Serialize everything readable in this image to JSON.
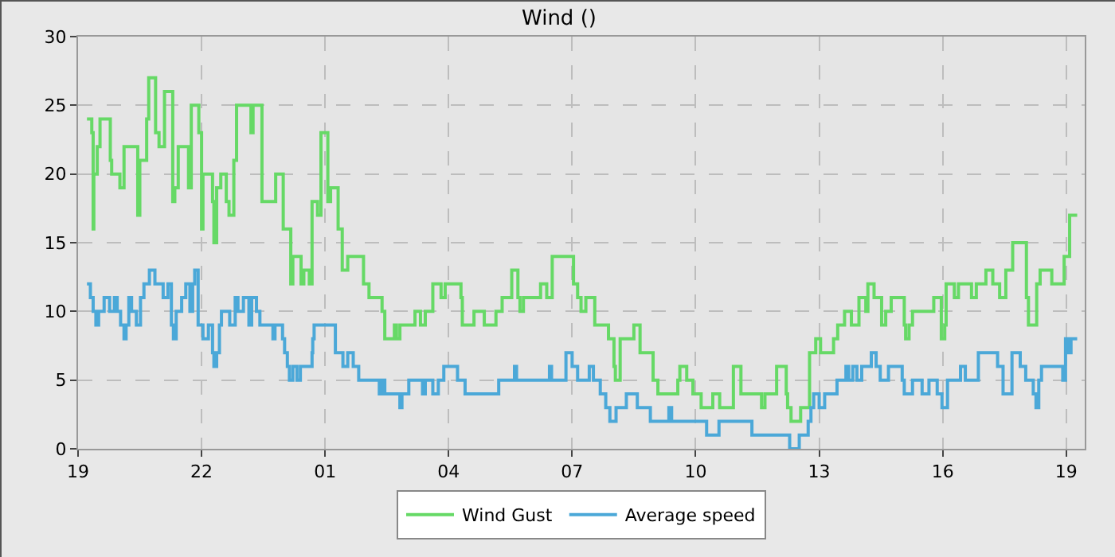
{
  "chart_data": {
    "type": "step",
    "title": "Wind ()",
    "xlim": [
      "--01-01T19:00",
      "--01-02T19:27"
    ],
    "xticks": [
      {
        "value": "--01-01T19:00",
        "label": "19"
      },
      {
        "value": "--01-01T22:00",
        "label": "22"
      },
      {
        "value": "--01-02T01:00",
        "label": "01"
      },
      {
        "value": "--01-02T04:00",
        "label": "04"
      },
      {
        "value": "--01-02T07:00",
        "label": "07"
      },
      {
        "value": "--01-02T10:00",
        "label": "10"
      },
      {
        "value": "--01-02T13:00",
        "label": "13"
      },
      {
        "value": "--01-02T16:00",
        "label": "16"
      },
      {
        "value": "--01-02T19:00",
        "label": "19"
      }
    ],
    "ylim": [
      0,
      30
    ],
    "yticks": [
      0,
      5,
      10,
      15,
      20,
      25,
      30
    ],
    "grid": true,
    "legend": "bottom",
    "marker": "none",
    "line_style": "solid",
    "series": [
      {
        "name": "Wind Gust",
        "color": "#66d966",
        "x": [
          "--01-01T19:13",
          "--01-01T19:20",
          "--01-01T19:22",
          "--01-01T19:23",
          "--01-01T19:28",
          "--01-01T19:32",
          "--01-01T19:47",
          "--01-01T19:49",
          "--01-01T20:01",
          "--01-01T20:07",
          "--01-01T20:27",
          "--01-01T20:30",
          "--01-01T20:40",
          "--01-01T20:43",
          "--01-01T20:53",
          "--01-01T20:58",
          "--01-01T21:06",
          "--01-01T21:18",
          "--01-01T21:21",
          "--01-01T21:26",
          "--01-01T21:41",
          "--01-01T21:45",
          "--01-01T21:56",
          "--01-01T22:00",
          "--01-01T22:02",
          "--01-01T22:16",
          "--01-01T22:18",
          "--01-01T22:22",
          "--01-01T22:28",
          "--01-01T22:36",
          "--01-01T22:40",
          "--01-01T22:47",
          "--01-01T22:51",
          "--01-01T23:12",
          "--01-01T23:15",
          "--01-01T23:28",
          "--01-01T23:48",
          "--01-01T23:59",
          "--01-02T00:10",
          "--01-02T00:13",
          "--01-02T00:25",
          "--01-02T00:29",
          "--01-02T00:37",
          "--01-02T00:41",
          "--01-02T00:49",
          "--01-02T00:54",
          "--01-02T01:04",
          "--01-02T01:08",
          "--01-02T01:19",
          "--01-02T01:25",
          "--01-02T01:33",
          "--01-02T01:56",
          "--01-02T02:04",
          "--01-02T02:23",
          "--01-02T02:27",
          "--01-02T02:41",
          "--01-02T02:44",
          "--01-02T02:49",
          "--01-02T03:11",
          "--01-02T03:19",
          "--01-02T03:26",
          "--01-02T03:37",
          "--01-02T03:49",
          "--01-02T03:55",
          "--01-02T04:18",
          "--01-02T04:20",
          "--01-02T04:37",
          "--01-02T04:52",
          "--01-02T05:09",
          "--01-02T05:18",
          "--01-02T05:32",
          "--01-02T05:41",
          "--01-02T05:44",
          "--01-02T05:49",
          "--01-02T06:14",
          "--01-02T06:23",
          "--01-02T06:31",
          "--01-02T07:02",
          "--01-02T07:08",
          "--01-02T07:13",
          "--01-02T07:20",
          "--01-02T07:33",
          "--01-02T07:53",
          "--01-02T08:01",
          "--01-02T08:03",
          "--01-02T08:10",
          "--01-02T08:30",
          "--01-02T08:39",
          "--01-02T08:58",
          "--01-02T09:05",
          "--01-02T09:34",
          "--01-02T09:37",
          "--01-02T09:47",
          "--01-02T09:56",
          "--01-02T10:08",
          "--01-02T10:25",
          "--01-02T10:35",
          "--01-02T10:55",
          "--01-02T11:06",
          "--01-02T11:36",
          "--01-02T11:41",
          "--01-02T11:58",
          "--01-02T12:12",
          "--01-02T12:14",
          "--01-02T12:19",
          "--01-02T12:33",
          "--01-02T12:46",
          "--01-02T12:55",
          "--01-02T13:02",
          "--01-02T13:21",
          "--01-02T13:27",
          "--01-02T13:37",
          "--01-02T13:47",
          "--01-02T13:58",
          "--01-02T14:08",
          "--01-02T14:11",
          "--01-02T14:20",
          "--01-02T14:31",
          "--01-02T14:37",
          "--01-02T14:45",
          "--01-02T15:04",
          "--01-02T15:06",
          "--01-02T15:11",
          "--01-02T15:16",
          "--01-02T15:47",
          "--01-02T15:58",
          "--01-02T16:03",
          "--01-02T16:05",
          "--01-02T16:17",
          "--01-02T16:23",
          "--01-02T16:42",
          "--01-02T16:49",
          "--01-02T17:03",
          "--01-02T17:13",
          "--01-02T17:23",
          "--01-02T17:32",
          "--01-02T17:42",
          "--01-02T18:02",
          "--01-02T18:05",
          "--01-02T18:17",
          "--01-02T18:22",
          "--01-02T18:39",
          "--01-02T18:57",
          "--01-02T19:05",
          "--01-02T19:16"
        ],
        "values": [
          24,
          23,
          16,
          20,
          22,
          24,
          21,
          20,
          19,
          22,
          17,
          21,
          24,
          27,
          23,
          22,
          26,
          18,
          19,
          22,
          19,
          25,
          23,
          16,
          20,
          18,
          15,
          19,
          20,
          18,
          17,
          21,
          25,
          23,
          25,
          18,
          20,
          16,
          12,
          14,
          12,
          13,
          12,
          18,
          17,
          23,
          18,
          19,
          16,
          13,
          14,
          12,
          11,
          10,
          8,
          9,
          8,
          9,
          10,
          9,
          10,
          12,
          11,
          12,
          11,
          9,
          10,
          9,
          10,
          11,
          13,
          11,
          10,
          11,
          12,
          11,
          14,
          12,
          11,
          10,
          11,
          9,
          8,
          6,
          5,
          8,
          9,
          7,
          5,
          4,
          5,
          6,
          5,
          4,
          3,
          4,
          3,
          6,
          4,
          3,
          4,
          6,
          4,
          3,
          2,
          3,
          7,
          8,
          7,
          8,
          9,
          10,
          9,
          11,
          10,
          12,
          11,
          9,
          10,
          11,
          9,
          8,
          9,
          10,
          11,
          8,
          9,
          12,
          11,
          12,
          11,
          12,
          13,
          12,
          11,
          13,
          15,
          11,
          9,
          12,
          13,
          12,
          14,
          17,
          17
        ]
      },
      {
        "name": "Average speed",
        "color": "#4ba8d8",
        "x": [
          "--01-01T19:13",
          "--01-01T19:18",
          "--01-01T19:22",
          "--01-01T19:26",
          "--01-01T19:30",
          "--01-01T19:38",
          "--01-01T19:46",
          "--01-01T19:53",
          "--01-01T19:57",
          "--01-01T20:02",
          "--01-01T20:07",
          "--01-01T20:10",
          "--01-01T20:14",
          "--01-01T20:18",
          "--01-01T20:25",
          "--01-01T20:31",
          "--01-01T20:36",
          "--01-01T20:44",
          "--01-01T20:52",
          "--01-01T21:04",
          "--01-01T21:11",
          "--01-01T21:16",
          "--01-01T21:19",
          "--01-01T21:23",
          "--01-01T21:31",
          "--01-01T21:37",
          "--01-01T21:43",
          "--01-01T21:47",
          "--01-01T21:50",
          "--01-01T21:55",
          "--01-01T22:02",
          "--01-01T22:10",
          "--01-01T22:16",
          "--01-01T22:18",
          "--01-01T22:22",
          "--01-01T22:26",
          "--01-01T22:29",
          "--01-01T22:41",
          "--01-01T22:49",
          "--01-01T22:53",
          "--01-01T23:01",
          "--01-01T23:09",
          "--01-01T23:13",
          "--01-01T23:20",
          "--01-01T23:25",
          "--01-01T23:44",
          "--01-01T23:47",
          "--01-01T23:58",
          "--01-02T00:01",
          "--01-02T00:05",
          "--01-02T00:08",
          "--01-02T00:13",
          "--01-02T00:19",
          "--01-02T00:24",
          "--01-02T00:41",
          "--01-02T00:42",
          "--01-02T00:44",
          "--01-02T01:15",
          "--01-02T01:26",
          "--01-02T01:33",
          "--01-02T01:41",
          "--01-02T01:49",
          "--01-02T02:19",
          "--01-02T02:23",
          "--01-02T02:27",
          "--01-02T02:49",
          "--01-02T02:52",
          "--01-02T03:02",
          "--01-02T03:22",
          "--01-02T03:26",
          "--01-02T03:37",
          "--01-02T03:45",
          "--01-02T03:53",
          "--01-02T04:13",
          "--01-02T04:24",
          "--01-02T05:13",
          "--01-02T05:36",
          "--01-02T05:39",
          "--01-02T06:27",
          "--01-02T06:30",
          "--01-02T06:51",
          "--01-02T07:00",
          "--01-02T07:08",
          "--01-02T07:25",
          "--01-02T07:31",
          "--01-02T07:41",
          "--01-02T07:49",
          "--01-02T07:55",
          "--01-02T08:04",
          "--01-02T08:19",
          "--01-02T08:35",
          "--01-02T08:54",
          "--01-02T09:21",
          "--01-02T09:25",
          "--01-02T10:16",
          "--01-02T10:34",
          "--01-02T11:22",
          "--01-02T12:17",
          "--01-02T12:31",
          "--01-02T12:44",
          "--01-02T12:48",
          "--01-02T12:52",
          "--01-02T13:00",
          "--01-02T13:08",
          "--01-02T13:26",
          "--01-02T13:39",
          "--01-02T13:43",
          "--01-02T13:49",
          "--01-02T13:55",
          "--01-02T14:02",
          "--01-02T14:16",
          "--01-02T14:23",
          "--01-02T14:29",
          "--01-02T14:41",
          "--01-02T15:01",
          "--01-02T15:04",
          "--01-02T15:16",
          "--01-02T15:30",
          "--01-02T15:40",
          "--01-02T15:52",
          "--01-02T15:59",
          "--01-02T16:07",
          "--01-02T16:26",
          "--01-02T16:33",
          "--01-02T16:52",
          "--01-02T17:20",
          "--01-02T17:28",
          "--01-02T17:41",
          "--01-02T17:53",
          "--01-02T18:01",
          "--01-02T18:12",
          "--01-02T18:16",
          "--01-02T18:20",
          "--01-02T18:24",
          "--01-02T18:55",
          "--01-02T18:59",
          "--01-02T19:03",
          "--01-02T19:07",
          "--01-02T19:16"
        ],
        "values": [
          12,
          11,
          10,
          9,
          10,
          11,
          10,
          11,
          10,
          9,
          8,
          9,
          11,
          10,
          9,
          11,
          12,
          13,
          12,
          11,
          12,
          9,
          8,
          10,
          11,
          12,
          10,
          12,
          13,
          9,
          8,
          9,
          7,
          6,
          7,
          9,
          10,
          9,
          11,
          10,
          11,
          9,
          11,
          10,
          9,
          8,
          9,
          8,
          7,
          6,
          5,
          6,
          5,
          6,
          7,
          8,
          9,
          7,
          6,
          7,
          6,
          5,
          4,
          5,
          4,
          3,
          4,
          5,
          4,
          5,
          4,
          5,
          6,
          5,
          4,
          5,
          6,
          5,
          6,
          5,
          7,
          6,
          5,
          6,
          5,
          4,
          3,
          2,
          3,
          4,
          3,
          2,
          3,
          2,
          1,
          2,
          1,
          0,
          1,
          2,
          3,
          4,
          3,
          4,
          5,
          6,
          5,
          6,
          5,
          6,
          7,
          6,
          5,
          6,
          5,
          4,
          5,
          4,
          5,
          4,
          3,
          5,
          6,
          5,
          7,
          6,
          4,
          7,
          6,
          5,
          4,
          3,
          5,
          6,
          5,
          8,
          7,
          8,
          8
        ]
      }
    ]
  }
}
